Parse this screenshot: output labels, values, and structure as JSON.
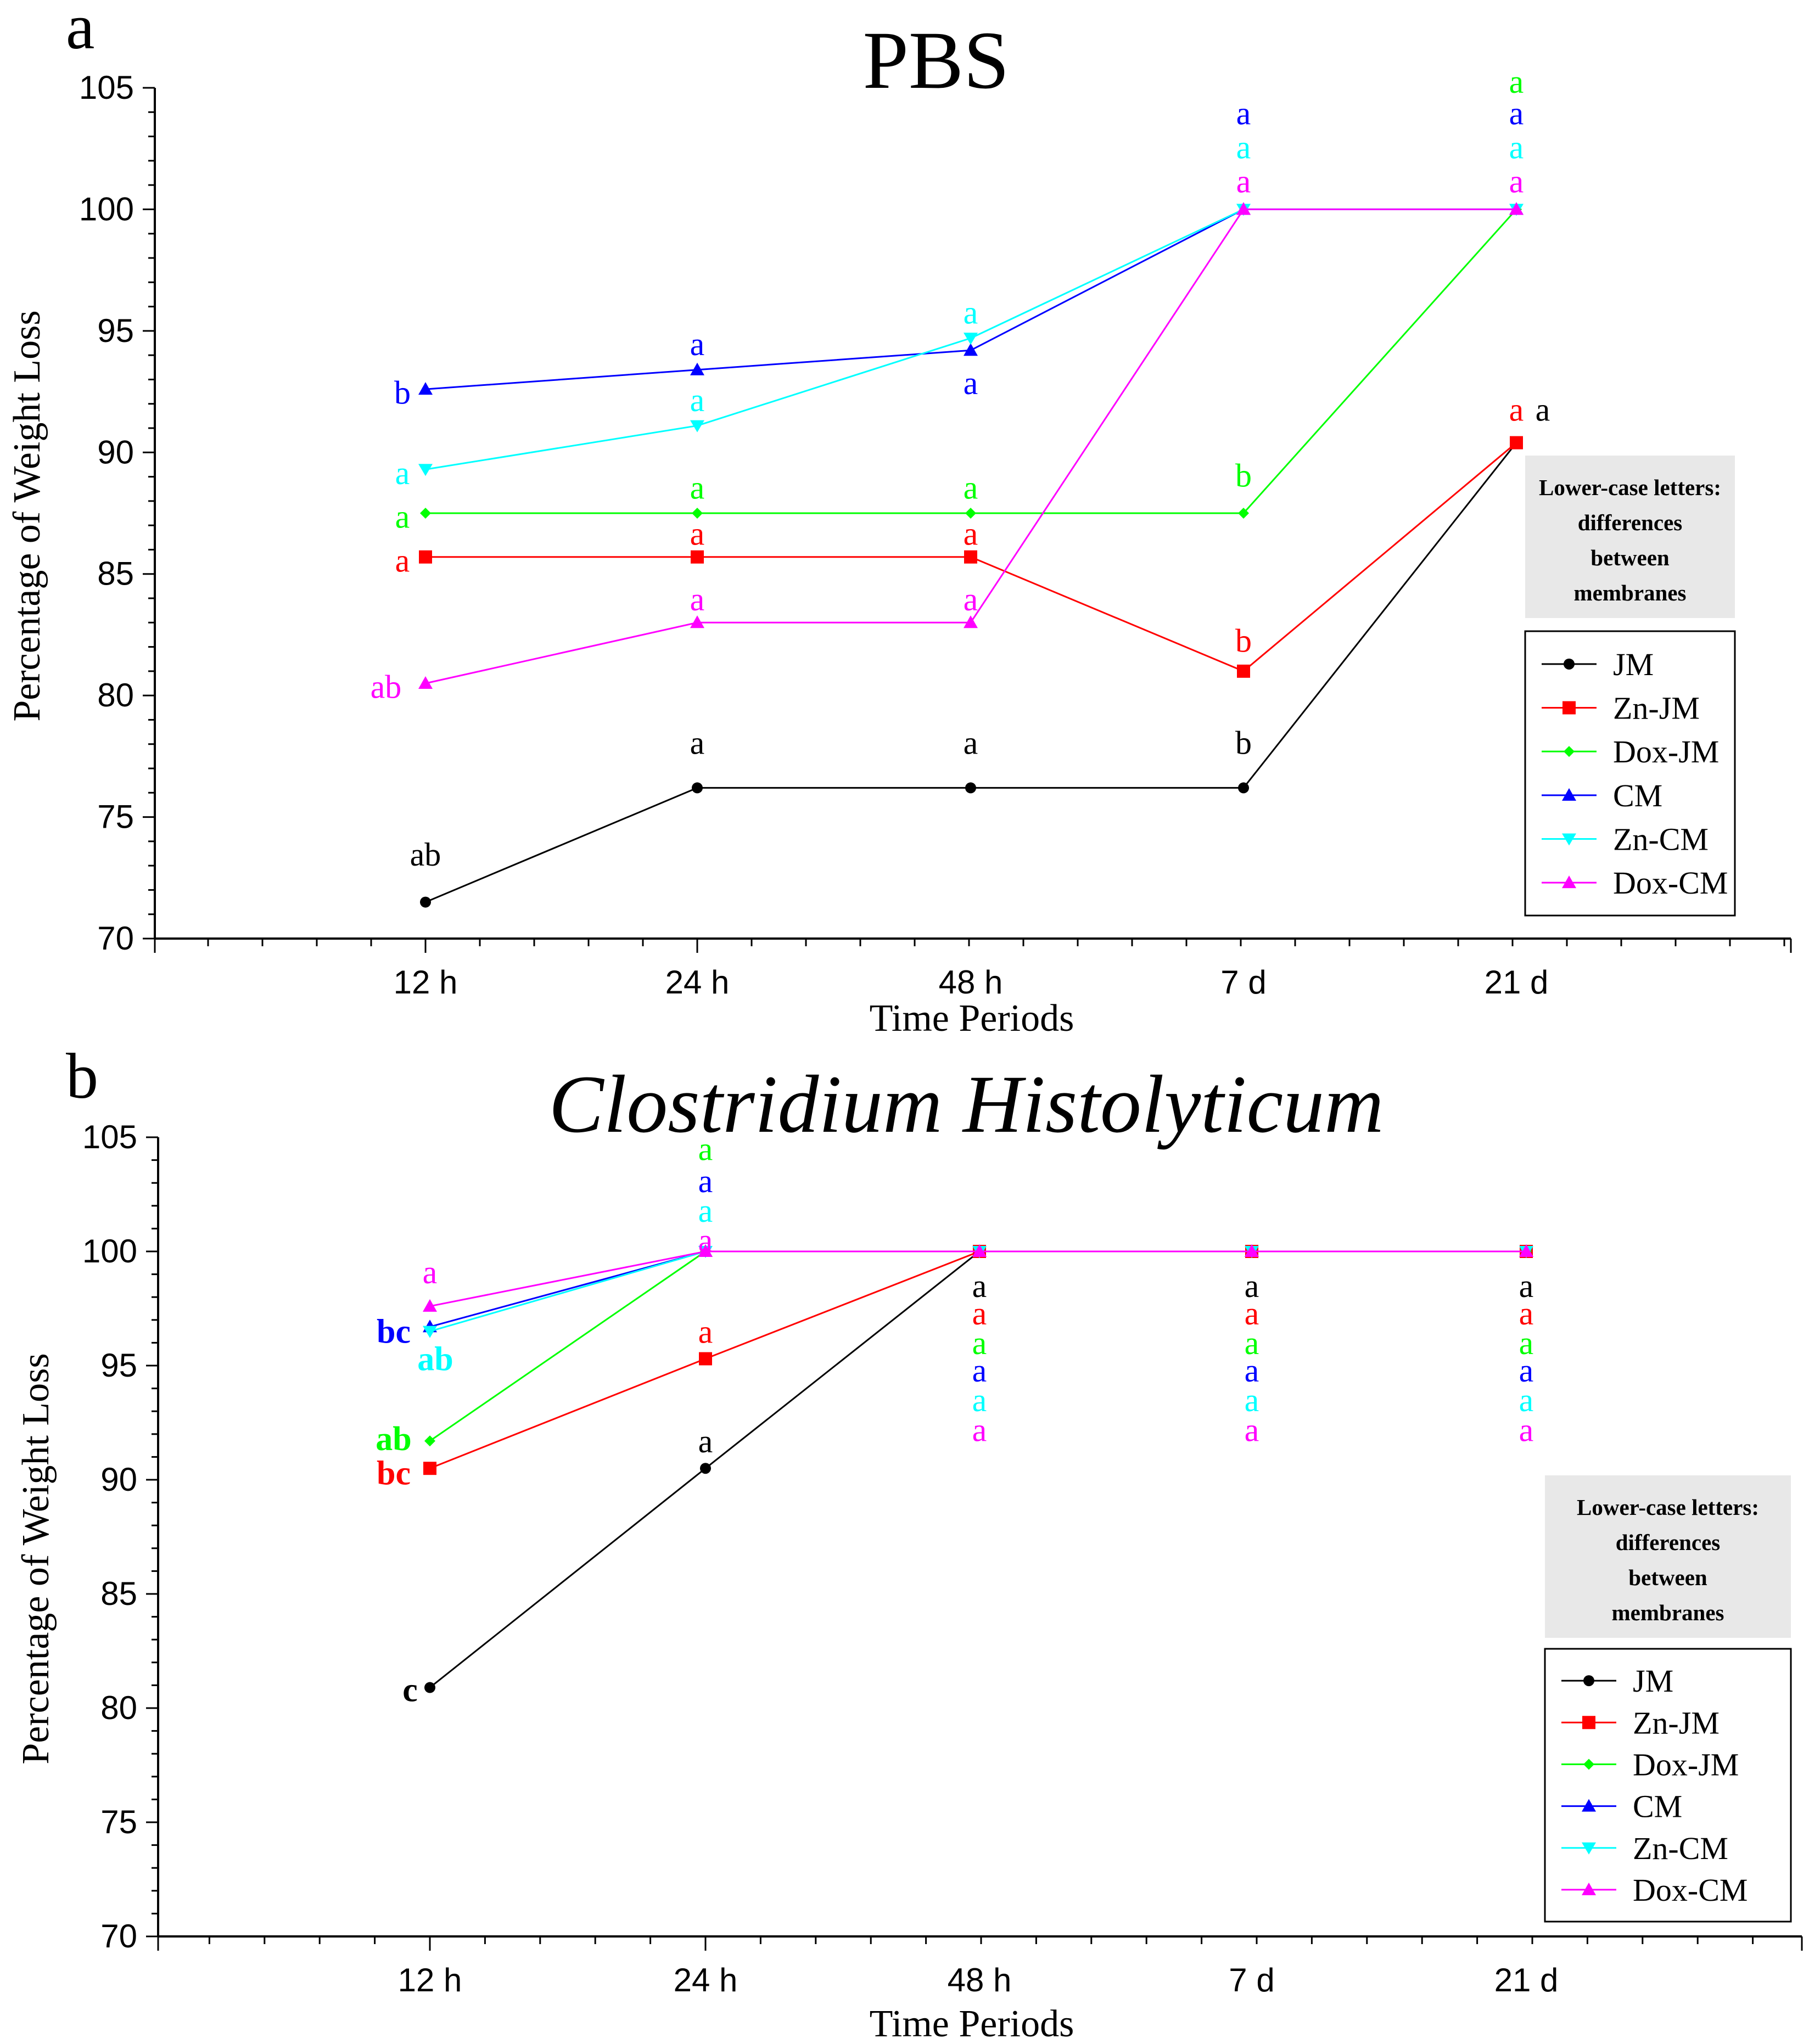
{
  "colors": {
    "JM": "#000000",
    "Zn-JM": "#ff0000",
    "Dox-JM": "#00ff00",
    "CM": "#0000ff",
    "Zn-CM": "#00ffff",
    "Dox-CM": "#ff00ff"
  },
  "markers": {
    "JM": "circle",
    "Zn-JM": "square",
    "Dox-JM": "diamond",
    "CM": "triangle-up",
    "Zn-CM": "triangle-down",
    "Dox-CM": "triangle-up"
  },
  "chart_data": [
    {
      "panel": "a",
      "type": "line",
      "title": "PBS",
      "xlabel": "Time Periods",
      "ylabel": "Percentage of Weight Loss",
      "categories": [
        "12 h",
        "24 h",
        "48 h",
        "7 d",
        "21 d"
      ],
      "ylim": [
        70,
        105
      ],
      "yticks": [
        70,
        75,
        80,
        85,
        90,
        95,
        100,
        105
      ],
      "grid": false,
      "legend_position": "lower-right",
      "note": [
        "Lower-case letters:",
        "differences",
        "between",
        "membranes"
      ],
      "series": [
        {
          "name": "JM",
          "values": [
            71.5,
            76.2,
            76.2,
            76.2,
            90.4
          ]
        },
        {
          "name": "Zn-JM",
          "values": [
            85.7,
            85.7,
            85.7,
            81.0,
            90.4
          ]
        },
        {
          "name": "Dox-JM",
          "values": [
            87.5,
            87.5,
            87.5,
            87.5,
            100
          ]
        },
        {
          "name": "CM",
          "values": [
            92.6,
            93.4,
            94.2,
            100,
            100
          ]
        },
        {
          "name": "Zn-CM",
          "values": [
            89.3,
            91.1,
            94.7,
            100,
            100
          ]
        },
        {
          "name": "Dox-CM",
          "values": [
            80.5,
            83.0,
            83.0,
            100,
            100
          ]
        }
      ],
      "annotations": [
        {
          "text": "ab",
          "series": "JM",
          "cat": 0,
          "y": 73.0,
          "dx": 0,
          "anchor": "middle"
        },
        {
          "text": "a",
          "series": "JM",
          "cat": 1,
          "y": 77.6,
          "dx": 0,
          "anchor": "middle"
        },
        {
          "text": "a",
          "series": "JM",
          "cat": 2,
          "y": 77.6,
          "dx": 0,
          "anchor": "middle"
        },
        {
          "text": "b",
          "series": "JM",
          "cat": 3,
          "y": 77.6,
          "dx": 0,
          "anchor": "middle"
        },
        {
          "text": "a",
          "series": "JM",
          "cat": 4,
          "y": 91.3,
          "dx": 48,
          "anchor": "middle"
        },
        {
          "text": "a",
          "series": "Zn-JM",
          "cat": 0,
          "y": 85.1,
          "dx": -42,
          "anchor": "middle"
        },
        {
          "text": "a",
          "series": "Zn-JM",
          "cat": 1,
          "y": 86.2,
          "dx": 0,
          "anchor": "middle"
        },
        {
          "text": "a",
          "series": "Zn-JM",
          "cat": 2,
          "y": 86.2,
          "dx": 0,
          "anchor": "middle"
        },
        {
          "text": "b",
          "series": "Zn-JM",
          "cat": 3,
          "y": 81.8,
          "dx": 0,
          "anchor": "middle"
        },
        {
          "text": "a",
          "series": "Zn-JM",
          "cat": 4,
          "y": 91.3,
          "dx": 0,
          "anchor": "middle"
        },
        {
          "text": "a",
          "series": "Dox-JM",
          "cat": 0,
          "y": 86.9,
          "dx": -42,
          "anchor": "middle"
        },
        {
          "text": "a",
          "series": "Dox-JM",
          "cat": 1,
          "y": 88.1,
          "dx": 0,
          "anchor": "middle"
        },
        {
          "text": "a",
          "series": "Dox-JM",
          "cat": 2,
          "y": 88.1,
          "dx": 0,
          "anchor": "middle"
        },
        {
          "text": "b",
          "series": "Dox-JM",
          "cat": 3,
          "y": 88.6,
          "dx": 0,
          "anchor": "middle"
        },
        {
          "text": "a",
          "series": "Dox-JM",
          "cat": 4,
          "y": 104.8,
          "dx": 0,
          "anchor": "middle"
        },
        {
          "text": "b",
          "series": "CM",
          "cat": 0,
          "y": 92.0,
          "dx": -42,
          "anchor": "middle"
        },
        {
          "text": "a",
          "series": "CM",
          "cat": 1,
          "y": 94.0,
          "dx": 0,
          "anchor": "middle"
        },
        {
          "text": "a",
          "series": "CM",
          "cat": 2,
          "y": 92.4,
          "dx": 0,
          "anchor": "middle"
        },
        {
          "text": "a",
          "series": "CM",
          "cat": 3,
          "y": 103.5,
          "dx": 0,
          "anchor": "middle"
        },
        {
          "text": "a",
          "series": "CM",
          "cat": 4,
          "y": 103.5,
          "dx": 0,
          "anchor": "middle"
        },
        {
          "text": "a",
          "series": "Zn-CM",
          "cat": 0,
          "y": 88.7,
          "dx": -42,
          "anchor": "middle"
        },
        {
          "text": "a",
          "series": "Zn-CM",
          "cat": 1,
          "y": 91.7,
          "dx": 0,
          "anchor": "middle"
        },
        {
          "text": "a",
          "series": "Zn-CM",
          "cat": 2,
          "y": 95.3,
          "dx": 0,
          "anchor": "middle"
        },
        {
          "text": "a",
          "series": "Zn-CM",
          "cat": 3,
          "y": 102.1,
          "dx": 0,
          "anchor": "middle"
        },
        {
          "text": "a",
          "series": "Zn-CM",
          "cat": 4,
          "y": 102.1,
          "dx": 0,
          "anchor": "middle"
        },
        {
          "text": "ab",
          "series": "Dox-CM",
          "cat": 0,
          "y": 79.9,
          "dx": -72,
          "anchor": "middle"
        },
        {
          "text": "a",
          "series": "Dox-CM",
          "cat": 1,
          "y": 83.5,
          "dx": 0,
          "anchor": "middle"
        },
        {
          "text": "a",
          "series": "Dox-CM",
          "cat": 2,
          "y": 83.5,
          "dx": 0,
          "anchor": "middle"
        },
        {
          "text": "a",
          "series": "Dox-CM",
          "cat": 3,
          "y": 100.7,
          "dx": 0,
          "anchor": "middle"
        },
        {
          "text": "a",
          "series": "Dox-CM",
          "cat": 4,
          "y": 100.7,
          "dx": 0,
          "anchor": "middle"
        }
      ]
    },
    {
      "panel": "b",
      "type": "line",
      "title": "Clostridium Histolyticum",
      "xlabel": "Time Periods",
      "ylabel": "Percentage of Weight Loss",
      "categories": [
        "12 h",
        "24 h",
        "48 h",
        "7 d",
        "21 d"
      ],
      "ylim": [
        70,
        105
      ],
      "yticks": [
        70,
        75,
        80,
        85,
        90,
        95,
        100,
        105
      ],
      "grid": false,
      "legend_position": "lower-right",
      "note": [
        "Lower-case letters:",
        "differences",
        "between",
        "membranes"
      ],
      "series": [
        {
          "name": "JM",
          "values": [
            80.9,
            90.5,
            100,
            100,
            100
          ]
        },
        {
          "name": "Zn-JM",
          "values": [
            90.5,
            95.3,
            100,
            100,
            100
          ]
        },
        {
          "name": "Dox-JM",
          "values": [
            91.7,
            100,
            100,
            100,
            100
          ]
        },
        {
          "name": "CM",
          "values": [
            96.7,
            100,
            100,
            100,
            100
          ]
        },
        {
          "name": "Zn-CM",
          "values": [
            96.5,
            100,
            100,
            100,
            100
          ]
        },
        {
          "name": "Dox-CM",
          "values": [
            97.6,
            100,
            100,
            100,
            100
          ]
        }
      ],
      "annotations": [
        {
          "text": "c",
          "series": "JM",
          "cat": 0,
          "y": 80.3,
          "bold": true,
          "dx": -36,
          "anchor": "middle"
        },
        {
          "text": "a",
          "series": "JM",
          "cat": 1,
          "y": 91.2,
          "dx": 0,
          "anchor": "middle"
        },
        {
          "text": "a",
          "series": "JM",
          "cat": 2,
          "y": 98.0,
          "dx": 0,
          "anchor": "middle"
        },
        {
          "text": "a",
          "series": "JM",
          "cat": 3,
          "y": 98.0,
          "dx": 0,
          "anchor": "middle"
        },
        {
          "text": "a",
          "series": "JM",
          "cat": 4,
          "y": 98.0,
          "dx": 0,
          "anchor": "middle"
        },
        {
          "text": "bc",
          "series": "Zn-JM",
          "cat": 0,
          "y": 89.8,
          "bold": true,
          "dx": -66,
          "anchor": "middle"
        },
        {
          "text": "a",
          "series": "Zn-JM",
          "cat": 1,
          "y": 96.0,
          "dx": 0,
          "anchor": "middle"
        },
        {
          "text": "a",
          "series": "Zn-JM",
          "cat": 2,
          "y": 96.8,
          "dx": 0,
          "anchor": "middle"
        },
        {
          "text": "a",
          "series": "Zn-JM",
          "cat": 3,
          "y": 96.8,
          "dx": 0,
          "anchor": "middle"
        },
        {
          "text": "a",
          "series": "Zn-JM",
          "cat": 4,
          "y": 96.8,
          "dx": 0,
          "anchor": "middle"
        },
        {
          "text": "ab",
          "series": "Dox-JM",
          "cat": 0,
          "y": 91.3,
          "bold": true,
          "dx": -66,
          "anchor": "middle"
        },
        {
          "text": "a",
          "series": "Dox-JM",
          "cat": 1,
          "y": 104.0,
          "dx": 0,
          "anchor": "middle"
        },
        {
          "text": "a",
          "series": "Dox-JM",
          "cat": 2,
          "y": 95.5,
          "dx": 0,
          "anchor": "middle"
        },
        {
          "text": "a",
          "series": "Dox-JM",
          "cat": 3,
          "y": 95.5,
          "dx": 0,
          "anchor": "middle"
        },
        {
          "text": "a",
          "series": "Dox-JM",
          "cat": 4,
          "y": 95.5,
          "dx": 0,
          "anchor": "middle"
        },
        {
          "text": "bc",
          "series": "CM",
          "cat": 0,
          "y": 96.0,
          "bold": true,
          "dx": -66,
          "anchor": "middle"
        },
        {
          "text": "a",
          "series": "CM",
          "cat": 1,
          "y": 102.6,
          "dx": 0,
          "anchor": "middle"
        },
        {
          "text": "a",
          "series": "CM",
          "cat": 2,
          "y": 94.3,
          "dx": 0,
          "anchor": "middle"
        },
        {
          "text": "a",
          "series": "CM",
          "cat": 3,
          "y": 94.3,
          "dx": 0,
          "anchor": "middle"
        },
        {
          "text": "a",
          "series": "CM",
          "cat": 4,
          "y": 94.3,
          "dx": 0,
          "anchor": "middle"
        },
        {
          "text": "ab",
          "series": "Zn-CM",
          "cat": 0,
          "y": 94.8,
          "bold": true,
          "dx": 10,
          "anchor": "middle"
        },
        {
          "text": "a",
          "series": "Zn-CM",
          "cat": 1,
          "y": 101.3,
          "dx": 0,
          "anchor": "middle"
        },
        {
          "text": "a",
          "series": "Zn-CM",
          "cat": 2,
          "y": 93.0,
          "dx": 0,
          "anchor": "middle"
        },
        {
          "text": "a",
          "series": "Zn-CM",
          "cat": 3,
          "y": 93.0,
          "dx": 0,
          "anchor": "middle"
        },
        {
          "text": "a",
          "series": "Zn-CM",
          "cat": 4,
          "y": 93.0,
          "dx": 0,
          "anchor": "middle"
        },
        {
          "text": "a",
          "series": "Dox-CM",
          "cat": 0,
          "y": 98.6,
          "dx": 0,
          "anchor": "middle"
        },
        {
          "text": "a",
          "series": "Dox-CM",
          "cat": 1,
          "y": 100.0,
          "dx": 0,
          "anchor": "middle"
        },
        {
          "text": "a",
          "series": "Dox-CM",
          "cat": 2,
          "y": 91.7,
          "dx": 0,
          "anchor": "middle"
        },
        {
          "text": "a",
          "series": "Dox-CM",
          "cat": 3,
          "y": 91.7,
          "dx": 0,
          "anchor": "middle"
        },
        {
          "text": "a",
          "series": "Dox-CM",
          "cat": 4,
          "y": 91.7,
          "dx": 0,
          "anchor": "middle"
        }
      ]
    }
  ]
}
